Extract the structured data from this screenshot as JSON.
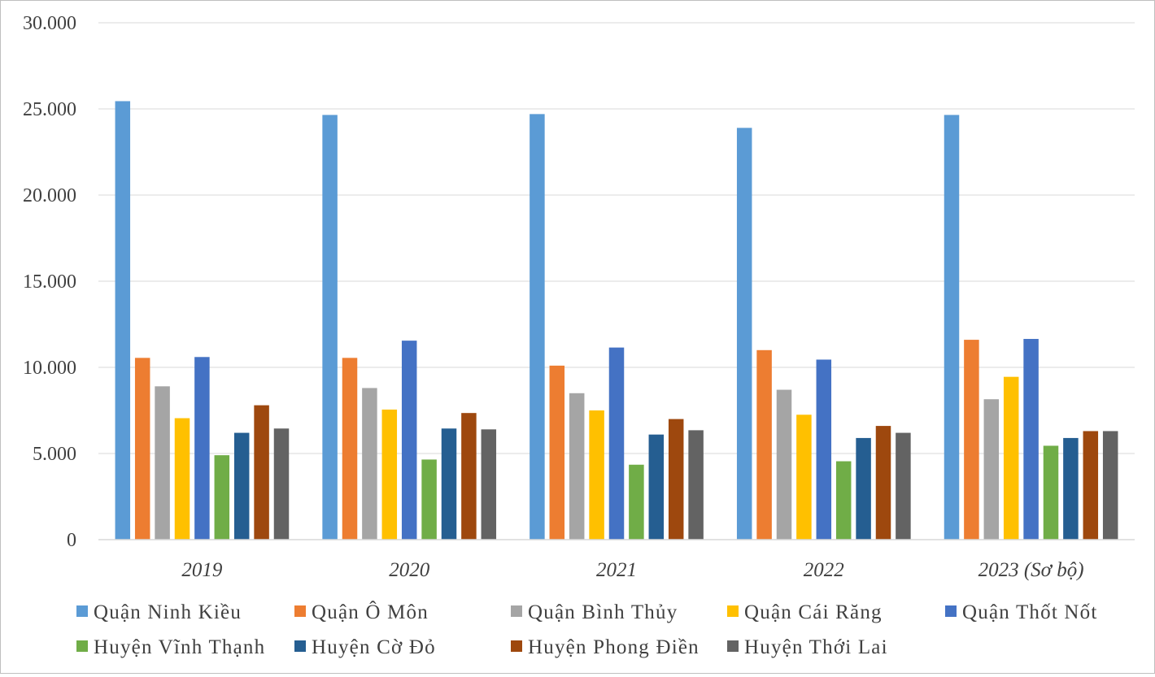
{
  "chart_data": {
    "type": "bar",
    "title": "",
    "xlabel": "",
    "ylabel": "",
    "ylim": [
      0,
      30000
    ],
    "ytick_values": [
      0,
      5000,
      10000,
      15000,
      20000,
      25000,
      30000
    ],
    "ytick_labels": [
      "0",
      "5.000",
      "10.000",
      "15.000",
      "20.000",
      "25.000",
      "30.000"
    ],
    "grid": "horizontal",
    "legend_position": "bottom",
    "categories": [
      "2019",
      "2020",
      "2021",
      "2022",
      "2023 (Sơ bộ)"
    ],
    "series": [
      {
        "name": "Quận Ninh Kiều",
        "color": "#5b9bd5",
        "values": [
          25450,
          24650,
          24700,
          23900,
          24650
        ]
      },
      {
        "name": "Quận Ô Môn",
        "color": "#ed7d31",
        "values": [
          10550,
          10550,
          10100,
          11000,
          11600
        ]
      },
      {
        "name": "Quận Bình Thủy",
        "color": "#a5a5a5",
        "values": [
          8900,
          8800,
          8500,
          8700,
          8150
        ]
      },
      {
        "name": "Quận Cái Răng",
        "color": "#ffc000",
        "values": [
          7050,
          7550,
          7500,
          7250,
          9450
        ]
      },
      {
        "name": "Quận Thốt Nốt",
        "color": "#4472c4",
        "values": [
          10600,
          11550,
          11150,
          10450,
          11650
        ]
      },
      {
        "name": "Huyện Vĩnh Thạnh",
        "color": "#70ad47",
        "values": [
          4900,
          4650,
          4350,
          4550,
          5450
        ]
      },
      {
        "name": "Huyện Cờ Đỏ",
        "color": "#255e91",
        "values": [
          6200,
          6450,
          6100,
          5900,
          5900
        ]
      },
      {
        "name": "Huyện Phong Điền",
        "color": "#9e480e",
        "values": [
          7800,
          7350,
          7000,
          6600,
          6300
        ]
      },
      {
        "name": "Huyện Thới Lai",
        "color": "#636363",
        "values": [
          6450,
          6400,
          6350,
          6200,
          6300
        ]
      }
    ]
  }
}
